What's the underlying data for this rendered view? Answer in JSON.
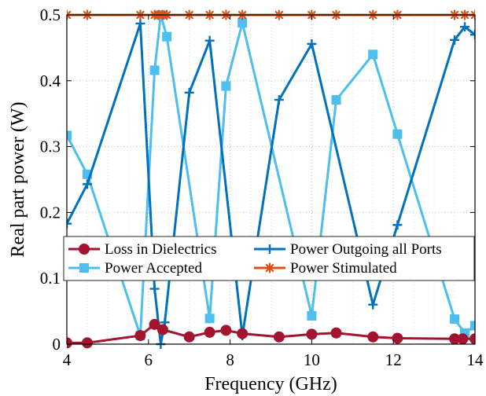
{
  "chart_data": {
    "type": "line",
    "xlabel": "Frequency (GHz)",
    "ylabel": "Real part power (W)",
    "xlim": [
      4,
      14
    ],
    "ylim": [
      0,
      0.5
    ],
    "xticks": [
      4,
      6,
      8,
      10,
      12,
      14
    ],
    "yticks": [
      0,
      0.1,
      0.2,
      0.3,
      0.4,
      0.5
    ],
    "xtick_labels": [
      "4",
      "6",
      "8",
      "10",
      "12",
      "14"
    ],
    "ytick_labels": [
      "0",
      "0.1",
      "0.2",
      "0.3",
      "0.4",
      "0.5"
    ],
    "grid": true,
    "legend_placement": "lower-left inside plot",
    "series": [
      {
        "name": "Loss in Dielectrics",
        "color": "#a2142f",
        "marker": "circle",
        "x": [
          4.0,
          4.5,
          5.8,
          6.15,
          6.35,
          7.0,
          7.5,
          7.9,
          8.3,
          9.2,
          10.0,
          10.6,
          11.5,
          12.1,
          13.5,
          13.7,
          14.0
        ],
        "y": [
          0.002,
          0.002,
          0.013,
          0.03,
          0.022,
          0.011,
          0.018,
          0.021,
          0.016,
          0.011,
          0.015,
          0.017,
          0.011,
          0.009,
          0.008,
          0.008,
          0.008
        ]
      },
      {
        "name": "Power Outgoing all Ports",
        "color": "#0072bd",
        "marker": "plus",
        "x": [
          4.0,
          4.5,
          5.8,
          6.15,
          6.3,
          6.4,
          7.0,
          7.5,
          8.3,
          9.2,
          10.0,
          11.5,
          12.1,
          13.5,
          13.75,
          14.0
        ],
        "y": [
          0.183,
          0.243,
          0.487,
          0.084,
          0.0,
          0.033,
          0.382,
          0.461,
          0.013,
          0.371,
          0.456,
          0.06,
          0.181,
          0.462,
          0.482,
          0.47
        ]
      },
      {
        "name": "Power Accepted",
        "color": "#4dbeee",
        "marker": "square",
        "x": [
          4.0,
          4.5,
          5.8,
          6.15,
          6.3,
          6.45,
          7.5,
          7.9,
          8.3,
          10.0,
          10.6,
          11.5,
          12.1,
          13.5,
          13.75,
          14.0
        ],
        "y": [
          0.317,
          0.258,
          0.013,
          0.416,
          0.5,
          0.467,
          0.039,
          0.392,
          0.488,
          0.043,
          0.371,
          0.44,
          0.319,
          0.038,
          0.017,
          0.028
        ]
      },
      {
        "name": "Power Stimulated",
        "color": "#d95319",
        "marker": "asterisk",
        "x": [
          4.0,
          4.5,
          5.8,
          6.15,
          6.25,
          6.35,
          6.45,
          7.0,
          7.5,
          7.9,
          8.3,
          9.2,
          10.0,
          10.6,
          11.5,
          12.1,
          13.5,
          13.75,
          14.0
        ],
        "y": [
          0.5,
          0.5,
          0.5,
          0.5,
          0.5,
          0.5,
          0.5,
          0.5,
          0.5,
          0.5,
          0.5,
          0.5,
          0.5,
          0.5,
          0.5,
          0.5,
          0.5,
          0.5,
          0.5
        ]
      }
    ],
    "legend": {
      "rows": [
        [
          "Loss in Dielectrics",
          "Power Outgoing all Ports"
        ],
        [
          "Power Accepted",
          "Power Stimulated"
        ]
      ]
    }
  }
}
